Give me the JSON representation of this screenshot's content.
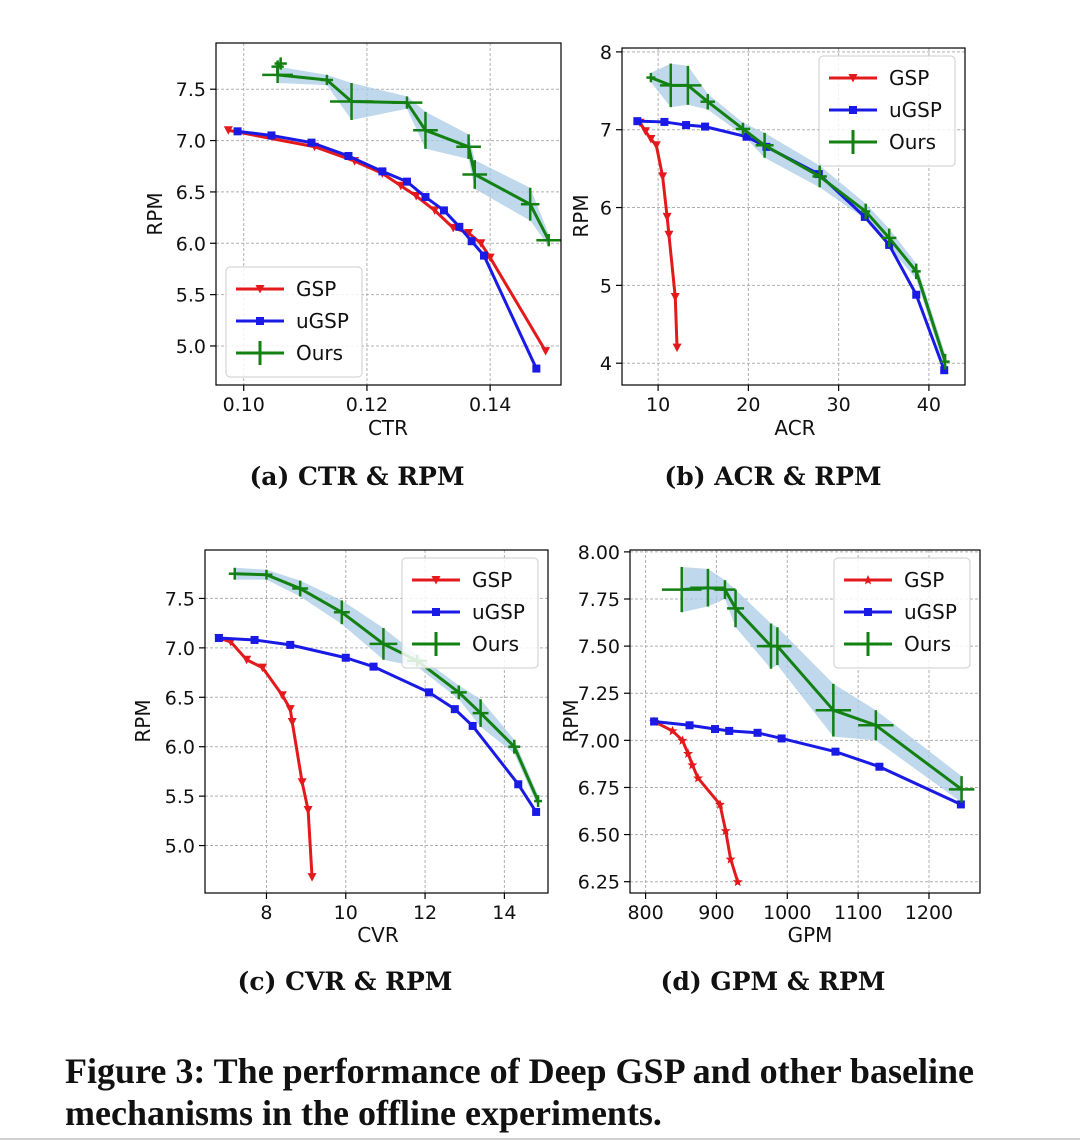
{
  "figure_caption": {
    "line1": "Figure 3: The performance of Deep GSP and other baseline",
    "line2": "mechanisms in the offline experiments."
  },
  "colors": {
    "GSP": "#e4191b",
    "uGSP": "#1a1ae6",
    "Ours": "#138012",
    "band": "#a9cbe6",
    "grid": "#b0b0b0"
  },
  "chart_data": [
    {
      "type": "line",
      "caption": "(a) CTR & RPM",
      "xlabel": "CTR",
      "ylabel": "RPM",
      "xlim": [
        0.0955,
        0.1515
      ],
      "ylim": [
        4.62,
        7.95
      ],
      "xticks": [
        0.1,
        0.12,
        0.14
      ],
      "xtick_labels": [
        "0.10",
        "0.12",
        "0.14"
      ],
      "yticks": [
        5.0,
        5.5,
        6.0,
        6.5,
        7.0,
        7.5
      ],
      "ytick_labels": [
        "5.0",
        "5.5",
        "6.0",
        "6.5",
        "7.0",
        "7.5"
      ],
      "legend": {
        "position": "lower-left",
        "entries": [
          "GSP",
          "uGSP",
          "Ours"
        ]
      },
      "series": [
        {
          "name": "GSP",
          "marker": "triangle",
          "x": [
            0.0975,
            0.1115,
            0.118,
            0.1225,
            0.1255,
            0.128,
            0.131,
            0.134,
            0.1365,
            0.1385,
            0.14,
            0.149
          ],
          "y": [
            7.1,
            6.94,
            6.8,
            6.68,
            6.56,
            6.46,
            6.32,
            6.15,
            6.1,
            6.0,
            5.86,
            4.95
          ]
        },
        {
          "name": "uGSP",
          "marker": "square",
          "x": [
            0.099,
            0.1045,
            0.111,
            0.117,
            0.1225,
            0.1265,
            0.1295,
            0.1325,
            0.135,
            0.137,
            0.139,
            0.1475
          ],
          "y": [
            7.09,
            7.05,
            6.98,
            6.85,
            6.7,
            6.6,
            6.45,
            6.32,
            6.16,
            6.02,
            5.88,
            4.78
          ]
        },
        {
          "name": "Ours",
          "marker": "cross",
          "x": [
            0.106,
            0.1055,
            0.1055,
            0.1135,
            0.1175,
            0.1265,
            0.1295,
            0.1365,
            0.1375,
            0.1465,
            0.1495
          ],
          "y": [
            7.75,
            7.72,
            7.64,
            7.59,
            7.38,
            7.37,
            7.1,
            6.94,
            6.67,
            6.38,
            6.03
          ],
          "err_x": [
            0.001,
            0.001,
            0.0025,
            0.001,
            0.0035,
            0.0025,
            0.002,
            0.002,
            0.002,
            0.0015,
            0.002
          ],
          "err_y": [
            0.06,
            0.06,
            0.08,
            0.05,
            0.18,
            0.06,
            0.18,
            0.12,
            0.14,
            0.16,
            0.06
          ]
        }
      ]
    },
    {
      "type": "line",
      "caption": "(b) ACR & RPM",
      "xlabel": "ACR",
      "ylabel": "RPM",
      "xlim": [
        6.0,
        44.0
      ],
      "ylim": [
        3.72,
        8.05
      ],
      "xticks": [
        10,
        20,
        30,
        40
      ],
      "xtick_labels": [
        "10",
        "20",
        "30",
        "40"
      ],
      "yticks": [
        4,
        5,
        6,
        7,
        8
      ],
      "ytick_labels": [
        "4",
        "5",
        "6",
        "7",
        "8"
      ],
      "legend": {
        "position": "top-right",
        "entries": [
          "GSP",
          "uGSP",
          "Ours"
        ]
      },
      "series": [
        {
          "name": "GSP",
          "marker": "triangle",
          "x": [
            8.0,
            8.6,
            9.2,
            9.8,
            10.5,
            11.0,
            11.2,
            11.9,
            12.1
          ],
          "y": [
            7.09,
            6.98,
            6.88,
            6.8,
            6.4,
            5.88,
            5.65,
            4.85,
            4.2
          ]
        },
        {
          "name": "uGSP",
          "marker": "square",
          "x": [
            7.7,
            10.7,
            13.1,
            15.2,
            19.8,
            22.0,
            27.8,
            32.9,
            35.6,
            38.6,
            41.7
          ],
          "y": [
            7.11,
            7.1,
            7.06,
            7.04,
            6.91,
            6.78,
            6.43,
            5.88,
            5.52,
            4.88,
            3.91
          ]
        },
        {
          "name": "Ours",
          "marker": "cross",
          "x": [
            9.2,
            11.4,
            13.3,
            15.5,
            19.4,
            21.8,
            27.9,
            33.0,
            35.6,
            38.6,
            41.8
          ],
          "y": [
            7.67,
            7.57,
            7.57,
            7.36,
            7.01,
            6.8,
            6.4,
            5.95,
            5.61,
            5.18,
            4.02
          ],
          "err_x": [
            0.5,
            1.2,
            1.5,
            0.8,
            0.8,
            1.0,
            0.8,
            0.5,
            0.8,
            0.5,
            0.5
          ],
          "err_y": [
            0.06,
            0.28,
            0.25,
            0.1,
            0.08,
            0.16,
            0.14,
            0.1,
            0.12,
            0.1,
            0.1
          ]
        }
      ]
    },
    {
      "type": "line",
      "caption": "(c) CVR & RPM",
      "xlabel": "CVR",
      "ylabel": "RPM",
      "xlim": [
        6.45,
        15.1
      ],
      "ylim": [
        4.52,
        7.99
      ],
      "xticks": [
        8,
        10,
        12,
        14
      ],
      "xtick_labels": [
        "8",
        "10",
        "12",
        "14"
      ],
      "yticks": [
        5.0,
        5.5,
        6.0,
        6.5,
        7.0,
        7.5
      ],
      "ytick_labels": [
        "5.0",
        "5.5",
        "6.0",
        "6.5",
        "7.0",
        "7.5"
      ],
      "legend": {
        "position": "top-right",
        "entries": [
          "GSP",
          "uGSP",
          "Ours"
        ]
      },
      "series": [
        {
          "name": "GSP",
          "marker": "triangle",
          "x": [
            6.8,
            7.1,
            7.5,
            7.9,
            8.4,
            8.6,
            8.65,
            8.9,
            9.05,
            9.15
          ],
          "y": [
            7.1,
            7.06,
            6.88,
            6.8,
            6.52,
            6.38,
            6.25,
            5.64,
            5.36,
            4.68
          ]
        },
        {
          "name": "uGSP",
          "marker": "square",
          "x": [
            6.8,
            7.7,
            8.6,
            10.0,
            10.7,
            12.1,
            12.75,
            13.2,
            14.35,
            14.8
          ],
          "y": [
            7.1,
            7.08,
            7.03,
            6.9,
            6.81,
            6.55,
            6.38,
            6.21,
            5.62,
            5.34
          ]
        },
        {
          "name": "Ours",
          "marker": "cross",
          "x": [
            7.2,
            8.0,
            8.85,
            9.9,
            10.95,
            11.8,
            12.85,
            13.4,
            14.25,
            14.85
          ],
          "y": [
            7.75,
            7.74,
            7.6,
            7.36,
            7.04,
            6.87,
            6.55,
            6.34,
            6.0,
            5.45
          ],
          "err_x": [
            0.15,
            0.15,
            0.2,
            0.2,
            0.35,
            0.25,
            0.2,
            0.2,
            0.15,
            0.1
          ],
          "err_y": [
            0.06,
            0.05,
            0.08,
            0.12,
            0.16,
            0.06,
            0.07,
            0.14,
            0.07,
            0.06
          ]
        }
      ]
    },
    {
      "type": "line",
      "caption": "(d) GPM & RPM",
      "xlabel": "GPM",
      "ylabel": "RPM",
      "xlim": [
        778,
        1272
      ],
      "ylim": [
        6.19,
        8.01
      ],
      "xticks": [
        800,
        900,
        1000,
        1100,
        1200
      ],
      "xtick_labels": [
        "800",
        "900",
        "1000",
        "1100",
        "1200"
      ],
      "yticks": [
        6.25,
        6.5,
        6.75,
        7.0,
        7.25,
        7.5,
        7.75,
        8.0
      ],
      "ytick_labels": [
        "6.25",
        "6.50",
        "6.75",
        "7.00",
        "7.25",
        "7.50",
        "7.75",
        "8.00"
      ],
      "legend": {
        "position": "top-right",
        "entries": [
          "GSP",
          "uGSP",
          "Ours"
        ]
      },
      "series": [
        {
          "name": "GSP",
          "marker": "star",
          "x": [
            812,
            838,
            852,
            860,
            866,
            874,
            905,
            913,
            920,
            930
          ],
          "y": [
            7.1,
            7.05,
            7.0,
            6.93,
            6.87,
            6.8,
            6.66,
            6.52,
            6.37,
            6.25
          ]
        },
        {
          "name": "uGSP",
          "marker": "square",
          "x": [
            812,
            862,
            898,
            918,
            958,
            992,
            1068,
            1130,
            1245
          ],
          "y": [
            7.1,
            7.08,
            7.06,
            7.05,
            7.04,
            7.01,
            6.94,
            6.86,
            6.66
          ]
        },
        {
          "name": "Ours",
          "marker": "cross",
          "x": [
            851,
            888,
            912,
            927,
            977,
            986,
            1065,
            1125,
            1246
          ],
          "y": [
            7.8,
            7.81,
            7.8,
            7.7,
            7.5,
            7.5,
            7.16,
            7.08,
            6.74
          ],
          "err_x": [
            28,
            25,
            15,
            12,
            20,
            20,
            25,
            25,
            18
          ],
          "err_y": [
            0.12,
            0.1,
            0.05,
            0.1,
            0.12,
            0.1,
            0.14,
            0.08,
            0.07
          ]
        }
      ]
    }
  ]
}
